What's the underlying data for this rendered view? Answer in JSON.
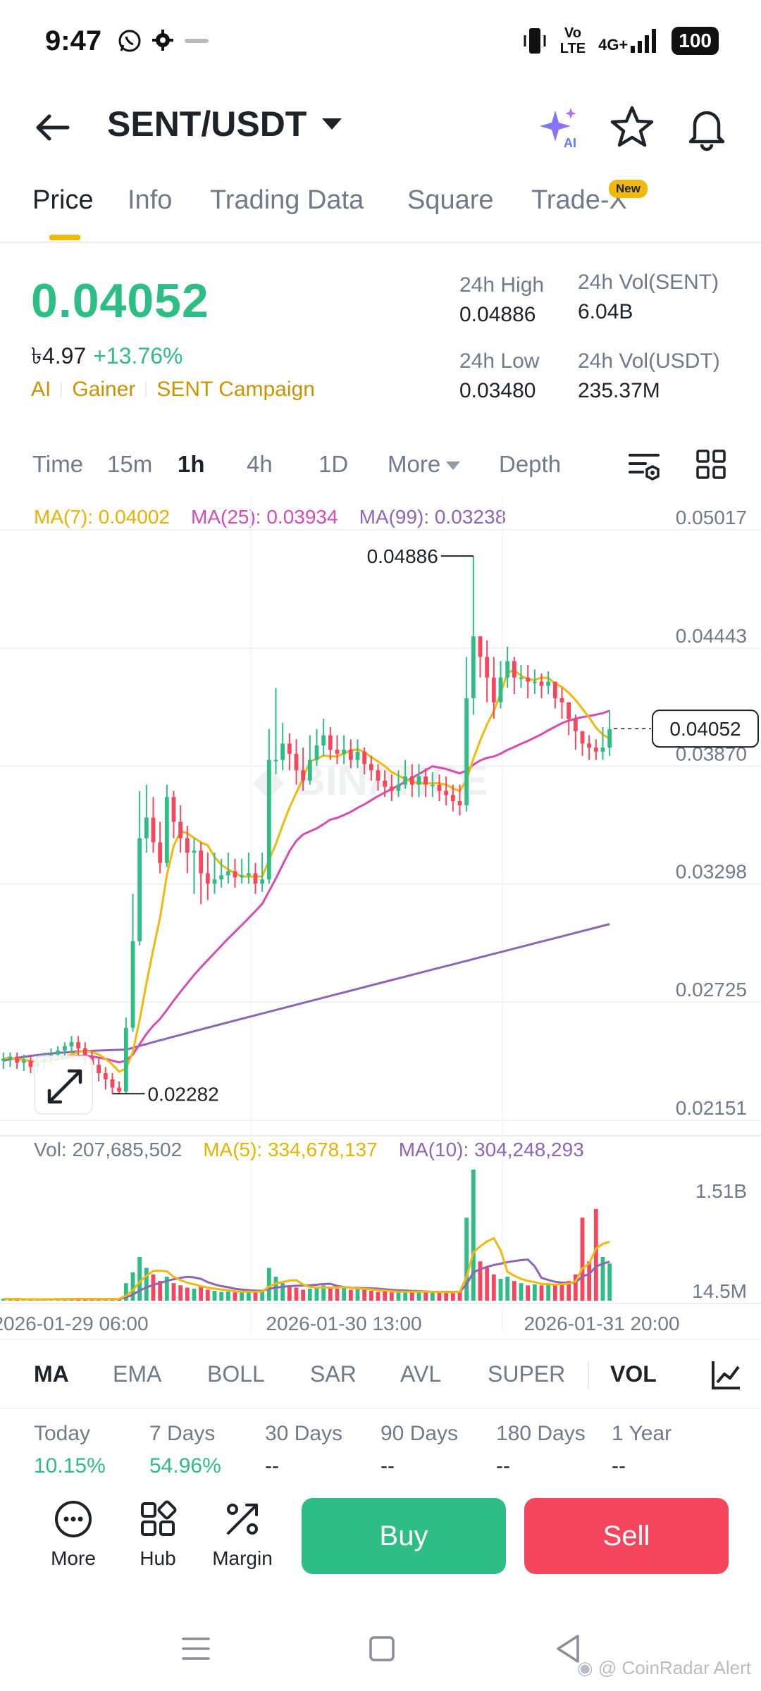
{
  "status_bar": {
    "time": "9:47",
    "network": "VoLTE",
    "signal": "4G+",
    "battery": "100"
  },
  "header": {
    "pair": "SENT/USDT"
  },
  "tabs": [
    {
      "label": "Price",
      "active": true
    },
    {
      "label": "Info"
    },
    {
      "label": "Trading Data"
    },
    {
      "label": "Square"
    },
    {
      "label": "Trade-X",
      "badge": "New"
    }
  ],
  "price": {
    "last": "0.04052",
    "local": "৳4.97",
    "change": "+13.76%",
    "tags": [
      "AI",
      "Gainer",
      "SENT Campaign"
    ],
    "stats": {
      "high_label": "24h High",
      "high": "0.04886",
      "low_label": "24h Low",
      "low": "0.03480",
      "vol_base_label": "24h Vol(SENT)",
      "vol_base": "6.04B",
      "vol_quote_label": "24h Vol(USDT)",
      "vol_quote": "235.37M"
    }
  },
  "intervals": [
    "Time",
    "15m",
    "1h",
    "4h",
    "1D",
    "More",
    "Depth"
  ],
  "active_interval": "1h",
  "ma_legend": {
    "ma7": "MA(7): 0.04002",
    "ma25": "MA(25): 0.03934",
    "ma99": "MA(99): 0.03238"
  },
  "vol_legend": {
    "vol": "Vol: 207,685,502",
    "ma5": "MA(5): 334,678,137",
    "ma10": "MA(10): 304,248,293"
  },
  "colors": {
    "up": "#2ebd85",
    "down": "#f6465d",
    "ma7": "#f0b90b",
    "ma25": "#d94bb4",
    "ma99": "#8e65b5",
    "accent": "#f0b90b"
  },
  "chart_data": {
    "type": "candlestick",
    "price_axis_ticks": [
      "0.05017",
      "0.04443",
      "0.03870",
      "0.03298",
      "0.02725",
      "0.02151"
    ],
    "ylim": [
      0.02151,
      0.05017
    ],
    "volume_axis_ticks": [
      "1.51B",
      "14.5M"
    ],
    "time_labels": [
      "2026-01-29 06:00",
      "2026-01-30 13:00",
      "2026-01-31 20:00"
    ],
    "annotations": {
      "high": "0.04886",
      "low": "0.02282",
      "current": "0.04052"
    },
    "close": [
      0.0245,
      0.0246,
      0.0243,
      0.0244,
      0.0241,
      0.0243,
      0.0245,
      0.0247,
      0.0249,
      0.0251,
      0.0253,
      0.025,
      0.0246,
      0.0242,
      0.0238,
      0.0235,
      0.0231,
      0.0229,
      0.026,
      0.0302,
      0.0352,
      0.0362,
      0.035,
      0.034,
      0.0372,
      0.036,
      0.0352,
      0.0345,
      0.0346,
      0.0335,
      0.033,
      0.0332,
      0.0334,
      0.0336,
      0.0333,
      0.0334,
      0.0335,
      0.033,
      0.0332,
      0.039,
      0.039,
      0.0398,
      0.0393,
      0.0385,
      0.038,
      0.039,
      0.0397,
      0.0402,
      0.0395,
      0.0393,
      0.0395,
      0.039,
      0.0394,
      0.0388,
      0.0385,
      0.038,
      0.0377,
      0.0375,
      0.0378,
      0.0382,
      0.0378,
      0.0382,
      0.0378,
      0.0378,
      0.0375,
      0.0373,
      0.037,
      0.0368,
      0.042,
      0.045,
      0.044,
      0.043,
      0.0418,
      0.043,
      0.0438,
      0.043,
      0.043,
      0.0428,
      0.0428,
      0.0426,
      0.0428,
      0.042,
      0.0418,
      0.041,
      0.0404,
      0.0398,
      0.0396,
      0.0394,
      0.0396,
      0.0405
    ],
    "open": [
      0.0244,
      0.0245,
      0.0246,
      0.0243,
      0.0244,
      0.0241,
      0.0243,
      0.0245,
      0.0247,
      0.0249,
      0.0251,
      0.0253,
      0.025,
      0.0246,
      0.0242,
      0.0238,
      0.0235,
      0.0231,
      0.0229,
      0.026,
      0.0302,
      0.0352,
      0.0362,
      0.035,
      0.034,
      0.0372,
      0.036,
      0.0352,
      0.0345,
      0.0346,
      0.0335,
      0.033,
      0.0332,
      0.0334,
      0.0336,
      0.0333,
      0.0334,
      0.0335,
      0.033,
      0.0332,
      0.039,
      0.039,
      0.0398,
      0.0393,
      0.0385,
      0.038,
      0.039,
      0.0397,
      0.0402,
      0.0395,
      0.0393,
      0.0395,
      0.039,
      0.0394,
      0.0388,
      0.0385,
      0.038,
      0.0377,
      0.0375,
      0.0378,
      0.0382,
      0.0378,
      0.0382,
      0.0378,
      0.0378,
      0.0375,
      0.0373,
      0.037,
      0.0368,
      0.042,
      0.045,
      0.044,
      0.043,
      0.0418,
      0.043,
      0.0438,
      0.043,
      0.043,
      0.0428,
      0.0428,
      0.0426,
      0.0428,
      0.042,
      0.0418,
      0.041,
      0.0404,
      0.0398,
      0.0396,
      0.0394,
      0.0396
    ],
    "high_series": [
      0.0248,
      0.0248,
      0.0248,
      0.0247,
      0.0247,
      0.0246,
      0.0248,
      0.025,
      0.0251,
      0.0253,
      0.0256,
      0.0256,
      0.0253,
      0.0249,
      0.0245,
      0.0241,
      0.0238,
      0.0234,
      0.0265,
      0.0325,
      0.0375,
      0.0378,
      0.0372,
      0.036,
      0.0378,
      0.0375,
      0.0368,
      0.0358,
      0.0352,
      0.035,
      0.0345,
      0.0345,
      0.0342,
      0.0345,
      0.0342,
      0.0342,
      0.0345,
      0.034,
      0.0345,
      0.0405,
      0.0425,
      0.0408,
      0.0403,
      0.04,
      0.0396,
      0.0402,
      0.0405,
      0.041,
      0.0406,
      0.0402,
      0.0402,
      0.04,
      0.04,
      0.0396,
      0.0392,
      0.0388,
      0.0385,
      0.0383,
      0.0385,
      0.039,
      0.0388,
      0.0388,
      0.0386,
      0.0384,
      0.0383,
      0.0382,
      0.0378,
      0.0378,
      0.044,
      0.0489,
      0.045,
      0.0448,
      0.044,
      0.0438,
      0.0445,
      0.044,
      0.0436,
      0.0436,
      0.0434,
      0.0432,
      0.0433,
      0.0428,
      0.0425,
      0.0418,
      0.0412,
      0.0404,
      0.0402,
      0.04,
      0.0406,
      0.0414
    ],
    "low_series": [
      0.024,
      0.0241,
      0.024,
      0.0239,
      0.0238,
      0.0238,
      0.024,
      0.0242,
      0.0244,
      0.0246,
      0.0248,
      0.0246,
      0.0242,
      0.0238,
      0.0234,
      0.023,
      0.0228,
      0.0228,
      0.0228,
      0.0258,
      0.03,
      0.0345,
      0.0345,
      0.0335,
      0.0338,
      0.0352,
      0.0345,
      0.0335,
      0.0325,
      0.032,
      0.0322,
      0.0325,
      0.0328,
      0.033,
      0.0328,
      0.033,
      0.033,
      0.0325,
      0.0326,
      0.033,
      0.0383,
      0.0385,
      0.0385,
      0.0378,
      0.0375,
      0.0378,
      0.0387,
      0.0392,
      0.039,
      0.0388,
      0.0388,
      0.0386,
      0.0386,
      0.0383,
      0.038,
      0.0375,
      0.0372,
      0.037,
      0.0372,
      0.0376,
      0.0372,
      0.0372,
      0.0372,
      0.0372,
      0.037,
      0.0368,
      0.0365,
      0.0363,
      0.0365,
      0.0412,
      0.043,
      0.0418,
      0.041,
      0.0415,
      0.0425,
      0.0422,
      0.0425,
      0.042,
      0.0422,
      0.042,
      0.0422,
      0.0415,
      0.041,
      0.0402,
      0.0395,
      0.0392,
      0.039,
      0.039,
      0.039,
      0.0392
    ],
    "volume": [
      8,
      6,
      7,
      5,
      6,
      5,
      7,
      8,
      9,
      8,
      9,
      7,
      6,
      7,
      8,
      6,
      9,
      12,
      80,
      130,
      200,
      150,
      120,
      90,
      110,
      80,
      70,
      60,
      55,
      65,
      50,
      45,
      40,
      42,
      38,
      40,
      45,
      38,
      50,
      150,
      110,
      80,
      70,
      60,
      50,
      55,
      65,
      70,
      60,
      55,
      60,
      50,
      55,
      50,
      45,
      40,
      42,
      38,
      40,
      45,
      42,
      40,
      38,
      36,
      40,
      42,
      38,
      45,
      380,
      600,
      180,
      150,
      120,
      100,
      110,
      90,
      80,
      70,
      75,
      70,
      80,
      70,
      80,
      90,
      120,
      380,
      180,
      420,
      200,
      170
    ]
  },
  "indicators": [
    "MA",
    "EMA",
    "BOLL",
    "SAR",
    "AVL",
    "SUPER",
    "VOL"
  ],
  "active_indicators": [
    "MA",
    "VOL"
  ],
  "performance": [
    {
      "label": "Today",
      "value": "10.15%",
      "positive": true
    },
    {
      "label": "7 Days",
      "value": "54.96%",
      "positive": true
    },
    {
      "label": "30 Days",
      "value": "--"
    },
    {
      "label": "90 Days",
      "value": "--"
    },
    {
      "label": "180 Days",
      "value": "--"
    },
    {
      "label": "1 Year",
      "value": "--"
    }
  ],
  "actions": {
    "more": "More",
    "hub": "Hub",
    "margin": "Margin",
    "buy": "Buy",
    "sell": "Sell"
  },
  "watermark": "CoinRadar Alert"
}
